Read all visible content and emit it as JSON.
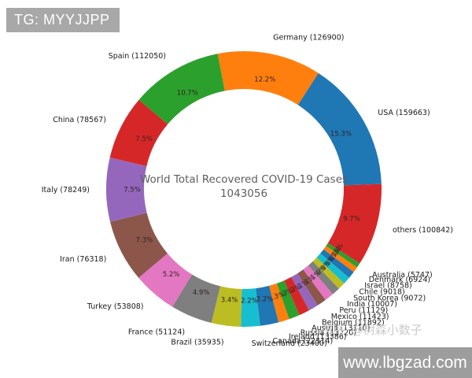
{
  "badge": {
    "text": "TG: MYYJJPP",
    "bg": "#a8a8a8",
    "fg": "#ffffff"
  },
  "watermark": {
    "text": "知乎 @树森小数子",
    "color": "#cbcbcb"
  },
  "site_banner": {
    "text": "www.lbgzad.com",
    "bg": "#9d9d9d",
    "fg": "#ffffff"
  },
  "chart_data": {
    "type": "pie",
    "subtype": "donut",
    "title": "World Total Recovered COVID-19 Cases",
    "total_label": "1043056",
    "total": 1043056,
    "title_color": "#5e5e5e",
    "percent_label_color": "#332222",
    "country_label_color": "#1a1a1a",
    "start_angle_deg": 101,
    "direction": "clockwise",
    "legend": "none",
    "slices": [
      {
        "name": "Germany",
        "label": "Germany (126900)",
        "value": 126900,
        "pct": "12.2%",
        "color": "#ff7f0e"
      },
      {
        "name": "USA",
        "label": "USA (159663)",
        "value": 159663,
        "pct": "15.3%",
        "color": "#1f77b4"
      },
      {
        "name": "others",
        "label": "others (100842)",
        "value": 100842,
        "pct": "9.7%",
        "color": "#d62728"
      },
      {
        "name": "Australia",
        "label": "Australia (5747)",
        "value": 5747,
        "pct": "0.6%",
        "color": "#2ca02c"
      },
      {
        "name": "Denmark",
        "label": "Denmark (6924)",
        "value": 6924,
        "pct": "0.7%",
        "color": "#ff7f0e"
      },
      {
        "name": "Israel",
        "label": "Israel (8758)",
        "value": 8758,
        "pct": "0.8%",
        "color": "#1f77b4"
      },
      {
        "name": "Chile",
        "label": "Chile (9018)",
        "value": 9018,
        "pct": "0.9%",
        "color": "#17becf"
      },
      {
        "name": "South Korea",
        "label": "South Korea (9072)",
        "value": 9072,
        "pct": "0.9%",
        "color": "#bcbd22"
      },
      {
        "name": "India",
        "label": "India (10007)",
        "value": 10007,
        "pct": "1.0%",
        "color": "#7f7f7f"
      },
      {
        "name": "Peru",
        "label": "Peru (11129)",
        "value": 11129,
        "pct": "1.1%",
        "color": "#e377c2"
      },
      {
        "name": "Mexico",
        "label": "Mexico (11423)",
        "value": 11423,
        "pct": "1.1%",
        "color": "#8c564b"
      },
      {
        "name": "Belgium",
        "label": "Belgium (11892)",
        "value": 11892,
        "pct": "1.1%",
        "color": "#9467bd"
      },
      {
        "name": "Austria",
        "label": "Austria (13110)",
        "value": 13110,
        "pct": "1.3%",
        "color": "#d62728"
      },
      {
        "name": "Russia",
        "label": "Russia (13220)",
        "value": 13220,
        "pct": "1.3%",
        "color": "#2ca02c"
      },
      {
        "name": "Ireland",
        "label": "Ireland (13386)",
        "value": 13386,
        "pct": "1.3%",
        "color": "#ff7f0e"
      },
      {
        "name": "Canada",
        "label": "Canada (22514)",
        "value": 22514,
        "pct": "2.2%",
        "color": "#1f77b4"
      },
      {
        "name": "Switzerland",
        "label": "Switzerland (23400)",
        "value": 23400,
        "pct": "2.2%",
        "color": "#17becf"
      },
      {
        "name": "Brazil",
        "label": "Brazil (35935)",
        "value": 35935,
        "pct": "3.4%",
        "color": "#bcbd22"
      },
      {
        "name": "France",
        "label": "France (51124)",
        "value": 51124,
        "pct": "4.9%",
        "color": "#7f7f7f"
      },
      {
        "name": "Turkey",
        "label": "Turkey (53808)",
        "value": 53808,
        "pct": "5.2%",
        "color": "#e377c2"
      },
      {
        "name": "Iran",
        "label": "Iran (76318)",
        "value": 76318,
        "pct": "7.3%",
        "color": "#8c564b"
      },
      {
        "name": "Italy",
        "label": "Italy (78249)",
        "value": 78249,
        "pct": "7.5%",
        "color": "#9467bd"
      },
      {
        "name": "China",
        "label": "China (78567)",
        "value": 78567,
        "pct": "7.5%",
        "color": "#d62728"
      },
      {
        "name": "Spain",
        "label": "Spain (112050)",
        "value": 112050,
        "pct": "10.7%",
        "color": "#2ca02c"
      }
    ]
  }
}
